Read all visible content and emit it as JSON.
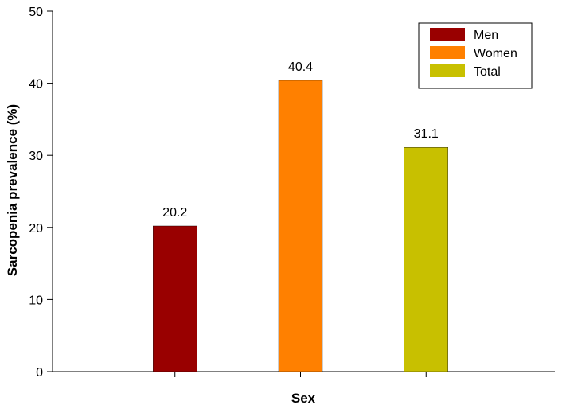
{
  "chart_data": {
    "type": "bar",
    "xlabel": "Sex",
    "ylabel": "Sarcopenia prevalence (%)",
    "ylim": [
      0,
      50
    ],
    "yticks": [
      0,
      10,
      20,
      30,
      40,
      50
    ],
    "series": [
      {
        "name": "Men",
        "value": 20.2,
        "label": "20.2",
        "color": "#990000"
      },
      {
        "name": "Women",
        "value": 40.4,
        "label": "40.4",
        "color": "#ff8000"
      },
      {
        "name": "Total",
        "value": 31.1,
        "label": "31.1",
        "color": "#c8c000"
      }
    ],
    "legend_position": "top-right",
    "grid": false
  }
}
